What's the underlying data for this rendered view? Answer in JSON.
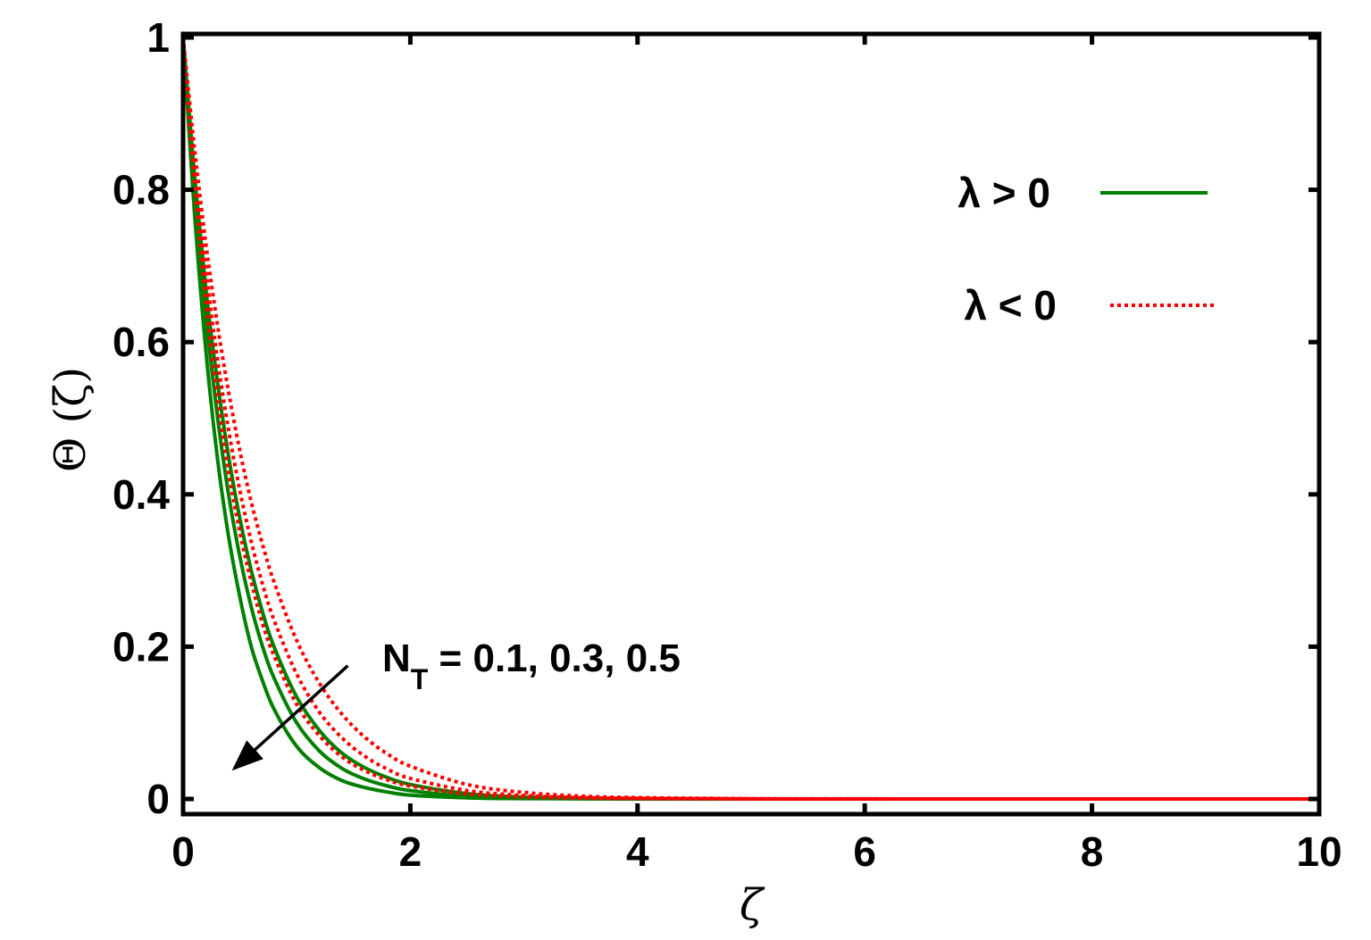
{
  "chart_data": {
    "type": "line",
    "xlabel": "ζ",
    "ylabel": "Θ (ζ)",
    "xlim": [
      0,
      10
    ],
    "ylim": [
      0,
      1
    ],
    "xticks": [
      0,
      2,
      4,
      6,
      8,
      10
    ],
    "yticks": [
      0,
      0.2,
      0.4,
      0.6,
      0.8,
      1
    ],
    "xtick_labels": [
      "0",
      "2",
      "4",
      "6",
      "8",
      "10"
    ],
    "ytick_labels": [
      "0",
      "0.2",
      "0.4",
      "0.6",
      "0.8",
      "1"
    ],
    "grid": false,
    "legend_position": "top-right",
    "legend": [
      {
        "label": "λ > 0",
        "color": "#008000",
        "style": "solid"
      },
      {
        "label": "λ < 0",
        "color": "#ff0000",
        "style": "dotted"
      }
    ],
    "annotation": {
      "text_main": "N",
      "text_sub": "T",
      "text_rest": " = 0.1, 0.3, 0.5",
      "arrow_from": [
        1.45,
        0.175
      ],
      "arrow_to": [
        0.45,
        0.04
      ]
    },
    "x": [
      0,
      0.1,
      0.2,
      0.3,
      0.4,
      0.5,
      0.6,
      0.7,
      0.8,
      1.0,
      1.2,
      1.4,
      1.6,
      1.8,
      2.0,
      2.5,
      3.0,
      3.5,
      4.0,
      5.0,
      6.0,
      8.0,
      10.0
    ],
    "series": [
      {
        "group": "λ > 0",
        "color": "#008000",
        "style": "solid",
        "values": [
          1,
          0.77,
          0.59,
          0.45,
          0.345,
          0.265,
          0.2,
          0.155,
          0.118,
          0.069,
          0.041,
          0.024,
          0.015,
          0.009,
          0.005,
          0.0015,
          0.0005,
          0.0002,
          0.0001,
          0,
          0,
          0,
          0
        ]
      },
      {
        "group": "λ > 0",
        "color": "#008000",
        "style": "solid",
        "values": [
          1,
          0.8,
          0.635,
          0.505,
          0.4,
          0.318,
          0.252,
          0.2,
          0.159,
          0.1,
          0.063,
          0.04,
          0.026,
          0.017,
          0.011,
          0.0035,
          0.0012,
          0.0004,
          0.0001,
          0,
          0,
          0,
          0
        ]
      },
      {
        "group": "λ > 0",
        "color": "#008000",
        "style": "solid",
        "values": [
          1,
          0.82,
          0.67,
          0.55,
          0.45,
          0.368,
          0.3,
          0.245,
          0.2,
          0.134,
          0.09,
          0.06,
          0.041,
          0.028,
          0.019,
          0.007,
          0.0025,
          0.001,
          0.0004,
          0,
          0,
          0,
          0
        ]
      },
      {
        "group": "λ < 0",
        "color": "#ff0000",
        "style": "dotted",
        "values": [
          1,
          0.81,
          0.655,
          0.53,
          0.43,
          0.35,
          0.285,
          0.23,
          0.188,
          0.124,
          0.083,
          0.055,
          0.037,
          0.025,
          0.017,
          0.0065,
          0.0025,
          0.001,
          0.0004,
          0,
          0,
          0,
          0
        ]
      },
      {
        "group": "λ < 0",
        "color": "#ff0000",
        "style": "dotted",
        "values": [
          1,
          0.835,
          0.695,
          0.58,
          0.485,
          0.405,
          0.338,
          0.282,
          0.235,
          0.164,
          0.114,
          0.08,
          0.056,
          0.039,
          0.027,
          0.011,
          0.0045,
          0.0018,
          0.0008,
          0.0002,
          0,
          0,
          0
        ]
      },
      {
        "group": "λ < 0",
        "color": "#ff0000",
        "style": "dotted",
        "values": [
          1,
          0.855,
          0.73,
          0.625,
          0.535,
          0.457,
          0.39,
          0.334,
          0.285,
          0.208,
          0.152,
          0.111,
          0.081,
          0.059,
          0.043,
          0.019,
          0.0085,
          0.0038,
          0.0017,
          0.0004,
          0.0001,
          0,
          0
        ]
      }
    ]
  }
}
